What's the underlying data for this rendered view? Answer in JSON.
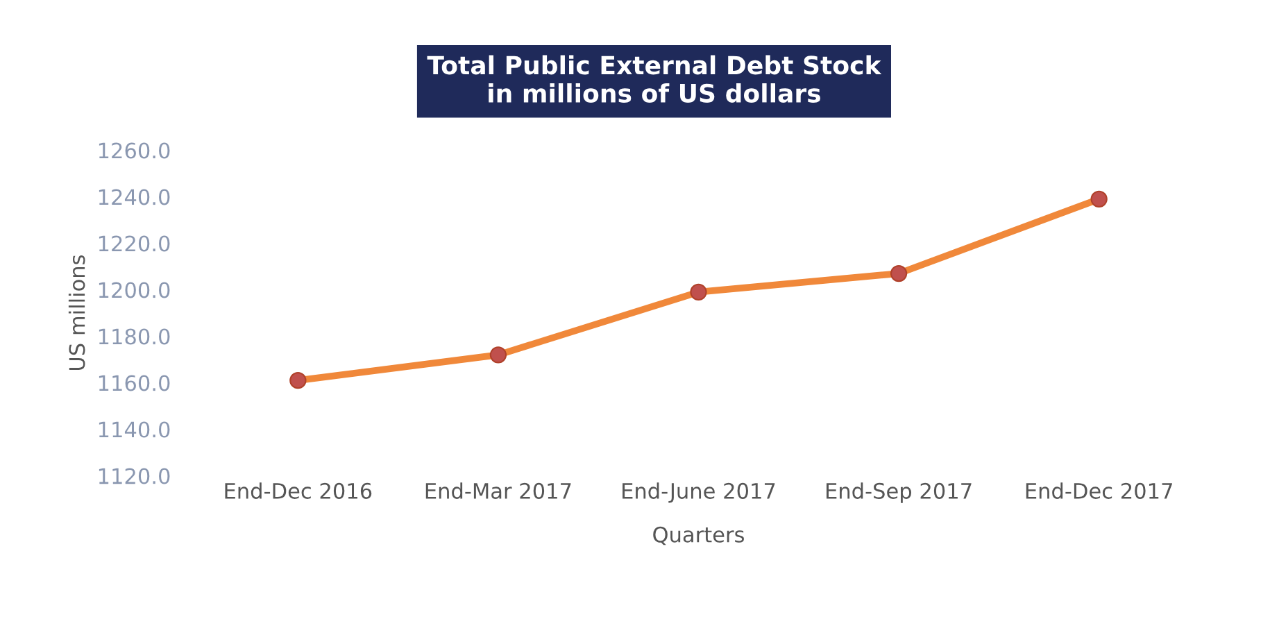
{
  "chart_data": {
    "type": "line",
    "title": "Total Public External Debt Stock\nin millions of US dollars",
    "xlabel": "Quarters",
    "ylabel": "US millions",
    "categories": [
      "End-Dec 2016",
      "End-Mar 2017",
      "End-June 2017",
      "End-Sep 2017",
      "End-Dec 2017"
    ],
    "series": [
      {
        "color": "#f0883a",
        "values": [
          1161,
          1172,
          1199,
          1207,
          1239
        ]
      }
    ],
    "ylim": [
      1120,
      1260
    ],
    "yticks": [
      {
        "value": 1120,
        "label": "1120.0"
      },
      {
        "value": 1140,
        "label": "1140.0"
      },
      {
        "value": 1160,
        "label": "1160.0"
      },
      {
        "value": 1180,
        "label": "1180.0"
      },
      {
        "value": 1200,
        "label": "1200.0"
      },
      {
        "value": 1220,
        "label": "1220.0"
      },
      {
        "value": 1240,
        "label": "1240.0"
      },
      {
        "value": 1260,
        "label": "1260.0"
      }
    ],
    "grid": false,
    "legend": false,
    "marker": "circle",
    "line_style": "solid"
  }
}
